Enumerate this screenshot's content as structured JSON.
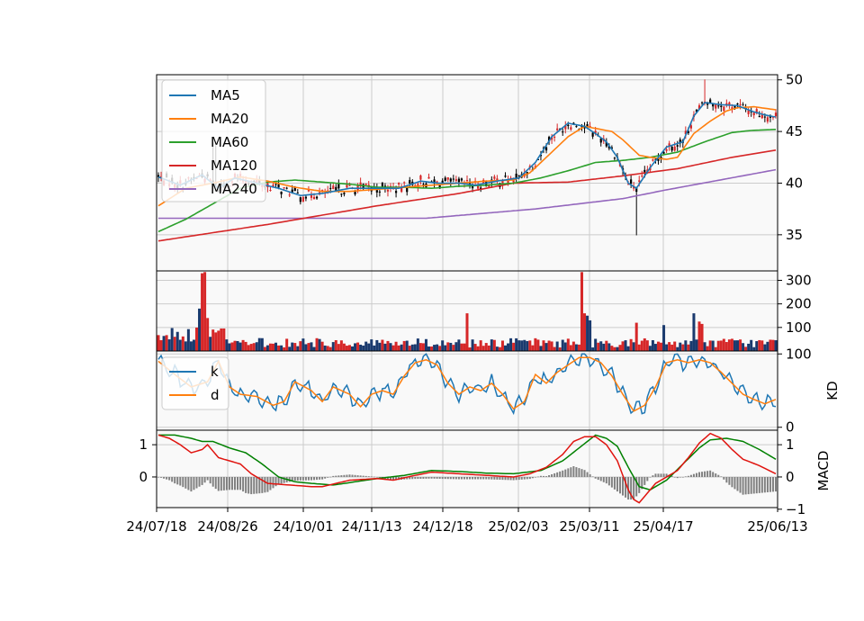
{
  "chart_data": {
    "type": "candlestick",
    "x_ticks": [
      "24/07/18",
      "24/08/26",
      "24/10/01",
      "24/11/13",
      "24/12/18",
      "25/02/03",
      "25/03/11",
      "25/04/17",
      "25/06/13"
    ],
    "colors": {
      "up": "#d62728",
      "down": "#000000",
      "ma5": "#1f77b4",
      "ma20": "#ff7f0e",
      "ma60": "#2ca02c",
      "ma120": "#d62728",
      "ma240": "#9467bd",
      "k": "#1f77b4",
      "d": "#ff7f0e",
      "dif": "#e0140f",
      "dem": "#008000",
      "hist": "#808080",
      "grid": "#cccccc",
      "bg": "#f9f9f9"
    },
    "panels": [
      {
        "name": "price",
        "ylim": [
          31.5,
          50.5
        ],
        "y_ticks": [
          35,
          40,
          45,
          50
        ],
        "legend": [
          "MA5",
          "MA20",
          "MA60",
          "MA120",
          "MA240"
        ],
        "legend_position": "upper-left",
        "ma_knots": {
          "ma5": [
            [
              0,
              40.6
            ],
            [
              8,
              39.8
            ],
            [
              16,
              40.8
            ],
            [
              22,
              39.5
            ],
            [
              28,
              40.5
            ],
            [
              36,
              40.0
            ],
            [
              44,
              39.5
            ],
            [
              52,
              38.8
            ],
            [
              60,
              39.0
            ],
            [
              70,
              39.5
            ],
            [
              80,
              39.5
            ],
            [
              88,
              39.5
            ],
            [
              96,
              40.2
            ],
            [
              102,
              40.0
            ],
            [
              110,
              40.0
            ],
            [
              116,
              39.8
            ],
            [
              124,
              40.2
            ],
            [
              132,
              40.5
            ],
            [
              138,
              42.0
            ],
            [
              144,
              44.5
            ],
            [
              150,
              45.8
            ],
            [
              156,
              45.5
            ],
            [
              160,
              44.8
            ],
            [
              164,
              44.0
            ],
            [
              168,
              42.5
            ],
            [
              172,
              40.0
            ],
            [
              175,
              39.5
            ],
            [
              180,
              41.5
            ],
            [
              186,
              43.5
            ],
            [
              192,
              44.0
            ],
            [
              196,
              46.5
            ],
            [
              200,
              47.8
            ],
            [
              206,
              47.6
            ],
            [
              212,
              47.5
            ],
            [
              218,
              46.9
            ],
            [
              222,
              46.6
            ],
            [
              226,
              46.4
            ]
          ],
          "ma20": [
            [
              0,
              37.8
            ],
            [
              10,
              39.5
            ],
            [
              20,
              40.0
            ],
            [
              30,
              40.6
            ],
            [
              40,
              40.2
            ],
            [
              50,
              39.6
            ],
            [
              60,
              39.2
            ],
            [
              70,
              39.2
            ],
            [
              80,
              39.4
            ],
            [
              90,
              39.6
            ],
            [
              100,
              39.8
            ],
            [
              110,
              40.0
            ],
            [
              120,
              40.2
            ],
            [
              130,
              40.3
            ],
            [
              136,
              41.0
            ],
            [
              142,
              42.5
            ],
            [
              150,
              44.5
            ],
            [
              156,
              45.5
            ],
            [
              160,
              45.3
            ],
            [
              166,
              45.0
            ],
            [
              170,
              44.2
            ],
            [
              176,
              42.7
            ],
            [
              180,
              42.5
            ],
            [
              186,
              42.3
            ],
            [
              190,
              42.5
            ],
            [
              196,
              44.8
            ],
            [
              202,
              46.0
            ],
            [
              208,
              47.0
            ],
            [
              212,
              47.3
            ],
            [
              218,
              47.4
            ],
            [
              226,
              47.1
            ]
          ],
          "ma60": [
            [
              0,
              35.3
            ],
            [
              10,
              36.5
            ],
            [
              20,
              38.0
            ],
            [
              30,
              39.5
            ],
            [
              40,
              40.1
            ],
            [
              50,
              40.3
            ],
            [
              60,
              40.1
            ],
            [
              70,
              39.9
            ],
            [
              80,
              39.6
            ],
            [
              90,
              39.6
            ],
            [
              100,
              39.5
            ],
            [
              110,
              39.7
            ],
            [
              120,
              39.8
            ],
            [
              130,
              40.0
            ],
            [
              140,
              40.5
            ],
            [
              150,
              41.2
            ],
            [
              160,
              42.0
            ],
            [
              170,
              42.2
            ],
            [
              180,
              42.5
            ],
            [
              190,
              43.0
            ],
            [
              200,
              44.0
            ],
            [
              210,
              44.9
            ],
            [
              217,
              45.1
            ],
            [
              226,
              45.2
            ]
          ],
          "ma120": [
            [
              0,
              34.4
            ],
            [
              40,
              36.0
            ],
            [
              80,
              37.8
            ],
            [
              110,
              39.0
            ],
            [
              130,
              40.0
            ],
            [
              150,
              40.1
            ],
            [
              170,
              40.7
            ],
            [
              190,
              41.4
            ],
            [
              210,
              42.5
            ],
            [
              226,
              43.2
            ]
          ],
          "ma240": [
            [
              0,
              36.6
            ],
            [
              98,
              36.6
            ],
            [
              138,
              37.5
            ],
            [
              170,
              38.5
            ],
            [
              185,
              39.3
            ],
            [
              226,
              41.3
            ]
          ]
        }
      },
      {
        "name": "volume",
        "ylim": [
          0,
          340
        ],
        "y_ticks": [
          100,
          200,
          300
        ],
        "spikes": [
          [
            15,
            180
          ],
          [
            16,
            330
          ],
          [
            17,
            335
          ],
          [
            18,
            140
          ],
          [
            113,
            160
          ],
          [
            155,
            335
          ],
          [
            156,
            160
          ],
          [
            157,
            150
          ],
          [
            158,
            130
          ],
          [
            175,
            120
          ],
          [
            185,
            110
          ],
          [
            196,
            160
          ],
          [
            198,
            125
          ],
          [
            199,
            115
          ]
        ]
      },
      {
        "name": "KD",
        "ylabel": "KD",
        "ylim": [
          -4,
          104
        ],
        "y_ticks": [
          0,
          100
        ],
        "legend": [
          "k",
          "d"
        ],
        "legend_position": "upper-left",
        "d_knots": [
          [
            0,
            90
          ],
          [
            6,
            72
          ],
          [
            12,
            55
          ],
          [
            18,
            62
          ],
          [
            22,
            90
          ],
          [
            26,
            55
          ],
          [
            30,
            45
          ],
          [
            36,
            42
          ],
          [
            42,
            30
          ],
          [
            46,
            35
          ],
          [
            50,
            62
          ],
          [
            56,
            50
          ],
          [
            60,
            35
          ],
          [
            64,
            55
          ],
          [
            70,
            45
          ],
          [
            74,
            28
          ],
          [
            78,
            45
          ],
          [
            82,
            50
          ],
          [
            86,
            45
          ],
          [
            90,
            70
          ],
          [
            94,
            88
          ],
          [
            98,
            92
          ],
          [
            102,
            85
          ],
          [
            106,
            60
          ],
          [
            110,
            45
          ],
          [
            114,
            55
          ],
          [
            118,
            50
          ],
          [
            122,
            60
          ],
          [
            126,
            45
          ],
          [
            130,
            25
          ],
          [
            134,
            35
          ],
          [
            138,
            72
          ],
          [
            142,
            60
          ],
          [
            146,
            75
          ],
          [
            150,
            85
          ],
          [
            154,
            95
          ],
          [
            158,
            95
          ],
          [
            162,
            88
          ],
          [
            166,
            70
          ],
          [
            170,
            45
          ],
          [
            174,
            22
          ],
          [
            178,
            30
          ],
          [
            182,
            55
          ],
          [
            186,
            88
          ],
          [
            190,
            92
          ],
          [
            194,
            88
          ],
          [
            198,
            92
          ],
          [
            202,
            88
          ],
          [
            206,
            75
          ],
          [
            210,
            60
          ],
          [
            214,
            45
          ],
          [
            218,
            38
          ],
          [
            222,
            32
          ],
          [
            226,
            38
          ]
        ]
      },
      {
        "name": "MACD",
        "ylabel": "MACD",
        "ylim": [
          -0.95,
          1.45
        ],
        "y_ticks": [
          -1,
          0,
          1
        ],
        "dif_knots": [
          [
            0,
            1.3
          ],
          [
            4,
            1.2
          ],
          [
            8,
            1.0
          ],
          [
            12,
            0.75
          ],
          [
            16,
            0.85
          ],
          [
            18,
            1.0
          ],
          [
            22,
            0.6
          ],
          [
            26,
            0.5
          ],
          [
            30,
            0.4
          ],
          [
            34,
            0.1
          ],
          [
            40,
            -0.2
          ],
          [
            48,
            -0.25
          ],
          [
            56,
            -0.3
          ],
          [
            60,
            -0.3
          ],
          [
            70,
            -0.1
          ],
          [
            80,
            -0.05
          ],
          [
            86,
            -0.1
          ],
          [
            94,
            0.05
          ],
          [
            100,
            0.15
          ],
          [
            110,
            0.1
          ],
          [
            120,
            0.05
          ],
          [
            130,
            0.0
          ],
          [
            136,
            0.1
          ],
          [
            142,
            0.3
          ],
          [
            148,
            0.7
          ],
          [
            152,
            1.1
          ],
          [
            156,
            1.25
          ],
          [
            160,
            1.25
          ],
          [
            164,
            1.0
          ],
          [
            168,
            0.5
          ],
          [
            172,
            -0.4
          ],
          [
            174,
            -0.7
          ],
          [
            176,
            -0.8
          ],
          [
            178,
            -0.6
          ],
          [
            182,
            -0.2
          ],
          [
            186,
            0.0
          ],
          [
            190,
            0.2
          ],
          [
            194,
            0.6
          ],
          [
            198,
            1.05
          ],
          [
            202,
            1.35
          ],
          [
            206,
            1.2
          ],
          [
            210,
            0.85
          ],
          [
            214,
            0.55
          ],
          [
            220,
            0.35
          ],
          [
            226,
            0.1
          ]
        ],
        "dem_knots": [
          [
            0,
            1.3
          ],
          [
            6,
            1.3
          ],
          [
            12,
            1.2
          ],
          [
            16,
            1.1
          ],
          [
            20,
            1.1
          ],
          [
            26,
            0.9
          ],
          [
            32,
            0.75
          ],
          [
            38,
            0.4
          ],
          [
            44,
            0.0
          ],
          [
            50,
            -0.15
          ],
          [
            56,
            -0.2
          ],
          [
            64,
            -0.25
          ],
          [
            72,
            -0.15
          ],
          [
            80,
            -0.05
          ],
          [
            90,
            0.05
          ],
          [
            100,
            0.2
          ],
          [
            110,
            0.17
          ],
          [
            120,
            0.12
          ],
          [
            130,
            0.1
          ],
          [
            140,
            0.2
          ],
          [
            148,
            0.5
          ],
          [
            154,
            0.9
          ],
          [
            160,
            1.3
          ],
          [
            164,
            1.2
          ],
          [
            168,
            0.95
          ],
          [
            172,
            0.3
          ],
          [
            176,
            -0.3
          ],
          [
            180,
            -0.4
          ],
          [
            186,
            -0.1
          ],
          [
            192,
            0.4
          ],
          [
            198,
            0.9
          ],
          [
            202,
            1.15
          ],
          [
            208,
            1.2
          ],
          [
            214,
            1.1
          ],
          [
            220,
            0.85
          ],
          [
            226,
            0.55
          ]
        ]
      }
    ]
  }
}
